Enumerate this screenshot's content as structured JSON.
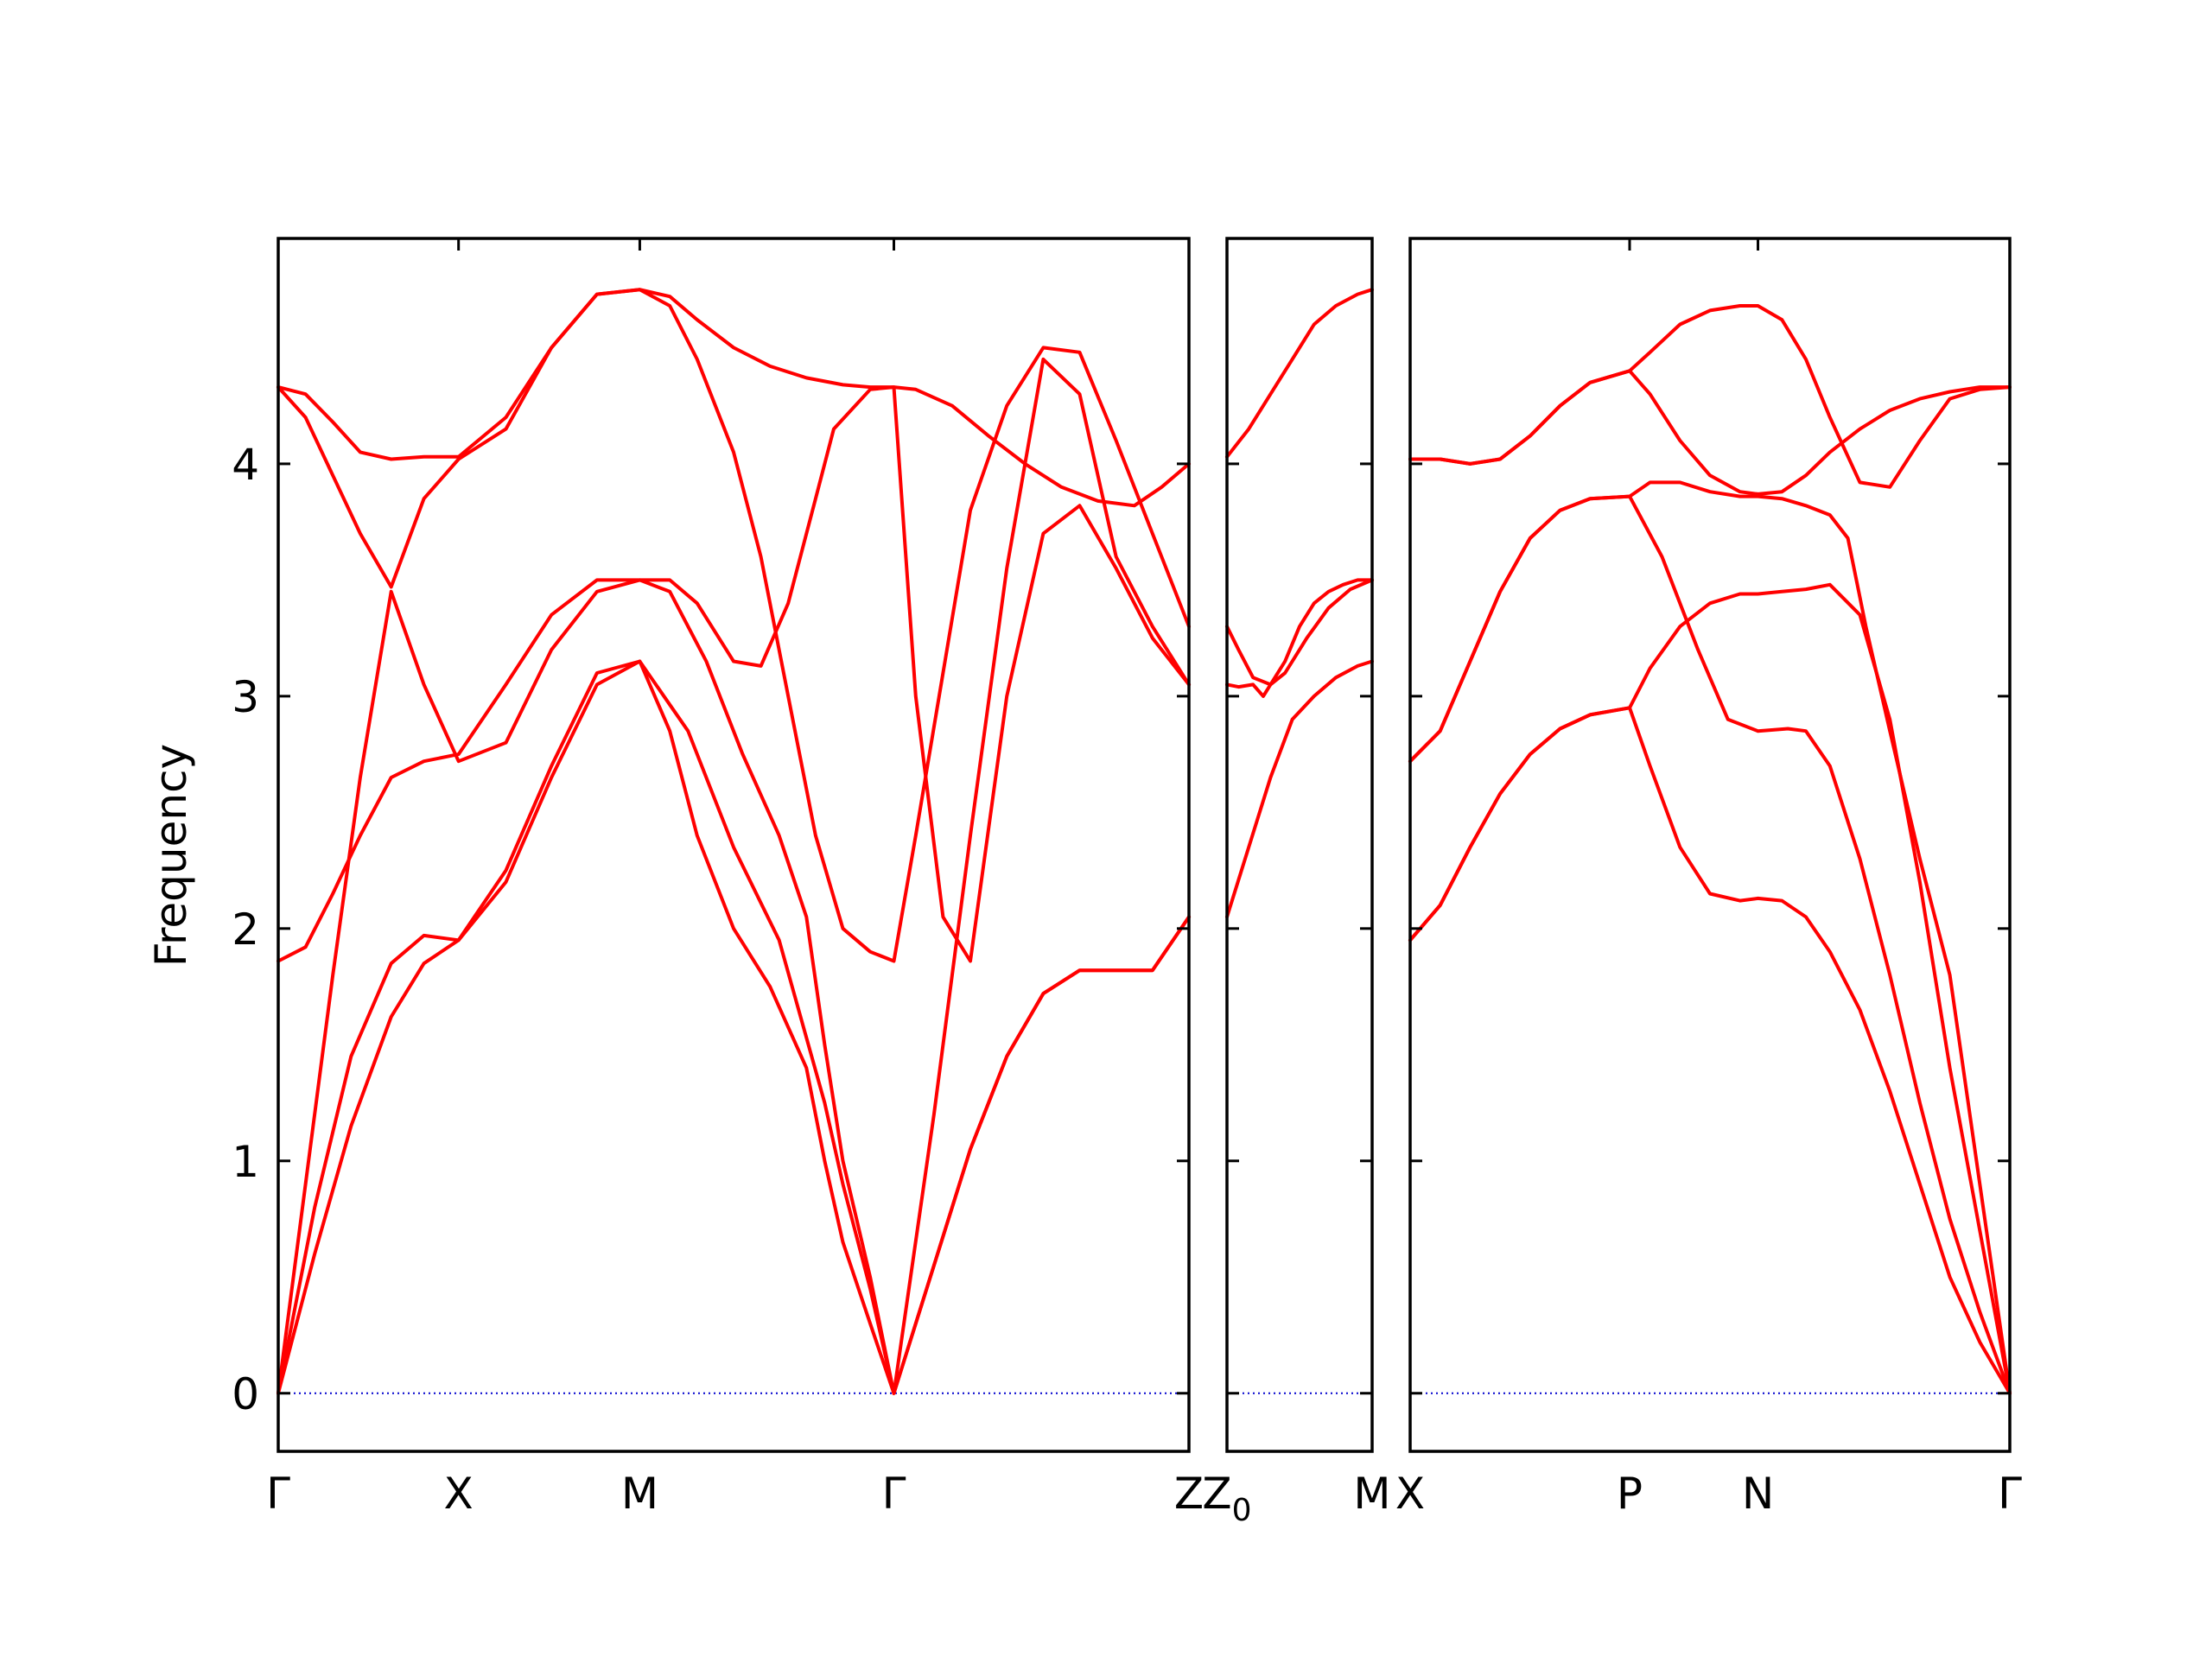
{
  "chart_data": {
    "type": "line",
    "ylabel": "Frequency",
    "ylim": [
      -0.25,
      4.97
    ],
    "yticks": [
      0,
      1,
      2,
      3,
      4
    ],
    "ytick_labels": [
      "0",
      "1",
      "2",
      "3",
      "4"
    ],
    "series_color": "#ff0000",
    "zero_line_color": "#0000cd",
    "panels": [
      {
        "name": "panel-1",
        "xlim": [
          0,
          1
        ],
        "tick_positions": [
          0,
          0.198,
          0.397,
          0.676,
          1
        ],
        "tick_labels": [
          {
            "main": "Γ",
            "sub": ""
          },
          {
            "main": "X",
            "sub": ""
          },
          {
            "main": "M",
            "sub": ""
          },
          {
            "main": "Γ",
            "sub": ""
          },
          {
            "main": "Z",
            "sub": ""
          }
        ],
        "bands": [
          {
            "x": [
              0,
              0.04,
              0.08,
              0.124,
              0.16,
              0.198,
              0.25,
              0.3,
              0.35,
              0.397,
              0.45,
              0.5,
              0.55,
              0.6,
              0.62,
              0.65,
              0.676,
              0.72,
              0.76,
              0.8,
              0.84,
              0.88,
              0.92,
              0.96,
              1
            ],
            "y": [
              0,
              0.6,
              1.15,
              1.62,
              1.85,
              1.95,
              2.25,
              2.7,
              3.1,
              3.15,
              2.85,
              2.35,
              1.95,
              1.25,
              0.9,
              0.45,
              0,
              0.55,
              1.05,
              1.45,
              1.72,
              1.82,
              1.82,
              1.82,
              2.05
            ]
          },
          {
            "x": [
              0,
              0.04,
              0.08,
              0.124,
              0.16,
              0.198,
              0.25,
              0.3,
              0.35,
              0.397,
              0.43,
              0.46,
              0.5,
              0.54,
              0.58,
              0.6,
              0.62,
              0.65,
              0.676,
              0.72,
              0.76,
              0.8,
              0.84,
              0.88,
              0.92,
              0.96,
              1
            ],
            "y": [
              0,
              0.8,
              1.45,
              1.85,
              1.97,
              1.95,
              2.2,
              2.65,
              3.05,
              3.15,
              2.85,
              2.4,
              2.0,
              1.75,
              1.4,
              1.0,
              0.65,
              0.3,
              0,
              0.55,
              1.05,
              1.45,
              1.72,
              1.82,
              1.82,
              1.82,
              2.05
            ]
          },
          {
            "x": [
              0,
              0.03,
              0.06,
              0.09,
              0.124,
              0.16,
              0.198,
              0.25,
              0.3,
              0.35,
              0.397,
              0.43,
              0.47,
              0.51,
              0.55,
              0.58,
              0.6,
              0.62,
              0.65,
              0.676,
              0.72,
              0.76,
              0.8,
              0.84,
              0.88,
              0.92,
              0.96,
              1
            ],
            "y": [
              0,
              0.9,
              1.8,
              2.65,
              3.45,
              3.05,
              2.72,
              2.8,
              3.2,
              3.45,
              3.5,
              3.45,
              3.15,
              2.75,
              2.4,
              2.05,
              1.5,
              1.0,
              0.5,
              0,
              1.2,
              2.4,
              3.55,
              4.45,
              4.3,
              3.6,
              3.3,
              3.05
            ]
          },
          {
            "x": [
              0,
              0.03,
              0.06,
              0.09,
              0.124,
              0.16,
              0.198,
              0.25,
              0.3,
              0.35,
              0.397,
              0.43,
              0.46,
              0.5,
              0.53,
              0.56,
              0.59,
              0.61,
              0.65,
              0.676,
              0.7,
              0.73,
              0.76,
              0.8,
              0.84,
              0.88,
              0.92,
              0.96,
              1
            ],
            "y": [
              1.86,
              1.92,
              2.15,
              2.4,
              2.65,
              2.72,
              2.75,
              3.05,
              3.35,
              3.5,
              3.5,
              3.5,
              3.4,
              3.15,
              3.13,
              3.4,
              3.85,
              4.15,
              4.32,
              4.33,
              3.0,
              2.05,
              1.86,
              3.0,
              3.7,
              3.82,
              3.55,
              3.25,
              3.05
            ]
          },
          {
            "x": [
              0,
              0.03,
              0.06,
              0.09,
              0.124,
              0.16,
              0.198,
              0.25,
              0.3,
              0.35,
              0.397,
              0.43,
              0.46,
              0.5,
              0.53,
              0.56,
              0.59,
              0.62,
              0.65,
              0.676,
              0.7,
              0.73,
              0.76,
              0.8,
              0.84,
              0.88,
              0.92,
              0.96,
              1
            ],
            "y": [
              4.33,
              4.2,
              3.95,
              3.7,
              3.47,
              3.85,
              4.02,
              4.15,
              4.5,
              4.73,
              4.75,
              4.68,
              4.45,
              4.05,
              3.6,
              3.0,
              2.4,
              2.0,
              1.9,
              1.86,
              2.4,
              3.1,
              3.8,
              4.25,
              4.5,
              4.48,
              4.1,
              3.7,
              3.3
            ]
          },
          {
            "x": [
              0,
              0.03,
              0.06,
              0.09,
              0.124,
              0.16,
              0.198,
              0.25,
              0.3,
              0.35,
              0.397,
              0.43,
              0.46,
              0.5,
              0.54,
              0.58,
              0.62,
              0.65,
              0.676,
              0.7,
              0.74,
              0.78,
              0.82,
              0.86,
              0.9,
              0.94,
              0.97,
              1
            ],
            "y": [
              4.33,
              4.3,
              4.18,
              4.05,
              4.02,
              4.03,
              4.03,
              4.2,
              4.5,
              4.73,
              4.75,
              4.72,
              4.62,
              4.5,
              4.42,
              4.37,
              4.34,
              4.33,
              4.33,
              4.32,
              4.25,
              4.12,
              4.0,
              3.9,
              3.84,
              3.82,
              3.9,
              4.0
            ]
          }
        ]
      },
      {
        "name": "panel-2",
        "xlim": [
          0,
          1
        ],
        "tick_positions": [
          0,
          1
        ],
        "tick_labels": [
          {
            "main": "Z",
            "sub": "0"
          },
          {
            "main": "M",
            "sub": ""
          }
        ],
        "bands": [
          {
            "x": [
              0,
              0.15,
              0.3,
              0.45,
              0.6,
              0.75,
              0.9,
              1
            ],
            "y": [
              2.05,
              2.35,
              2.65,
              2.9,
              3.0,
              3.08,
              3.13,
              3.15
            ]
          },
          {
            "x": [
              0,
              0.08,
              0.18,
              0.25,
              0.3,
              0.4,
              0.55,
              0.7,
              0.85,
              1
            ],
            "y": [
              3.05,
              3.04,
              3.05,
              3.0,
              3.05,
              3.1,
              3.25,
              3.38,
              3.46,
              3.5
            ]
          },
          {
            "x": [
              0,
              0.08,
              0.18,
              0.3,
              0.4,
              0.5,
              0.6,
              0.7,
              0.8,
              0.9,
              1
            ],
            "y": [
              3.3,
              3.2,
              3.08,
              3.05,
              3.15,
              3.3,
              3.4,
              3.45,
              3.48,
              3.5,
              3.5
            ]
          },
          {
            "x": [
              0,
              0.15,
              0.3,
              0.45,
              0.6,
              0.75,
              0.9,
              1
            ],
            "y": [
              4.03,
              4.15,
              4.3,
              4.45,
              4.6,
              4.68,
              4.73,
              4.75
            ]
          }
        ]
      },
      {
        "name": "panel-3",
        "xlim": [
          0,
          1
        ],
        "tick_positions": [
          0,
          0.366,
          0.58,
          1
        ],
        "tick_labels": [
          {
            "main": "X",
            "sub": ""
          },
          {
            "main": "P",
            "sub": ""
          },
          {
            "main": "N",
            "sub": ""
          },
          {
            "main": "Γ",
            "sub": ""
          }
        ],
        "bands": [
          {
            "x": [
              0,
              0.05,
              0.1,
              0.15,
              0.2,
              0.25,
              0.3,
              0.366,
              0.4,
              0.45,
              0.5,
              0.55,
              0.58,
              0.62,
              0.66,
              0.7,
              0.75,
              0.8,
              0.85,
              0.9,
              0.95,
              1
            ],
            "y": [
              1.95,
              2.1,
              2.35,
              2.58,
              2.75,
              2.86,
              2.92,
              2.95,
              2.7,
              2.35,
              2.15,
              2.12,
              2.13,
              2.12,
              2.05,
              1.9,
              1.65,
              1.3,
              0.9,
              0.5,
              0.22,
              0
            ]
          },
          {
            "x": [
              0,
              0.05,
              0.1,
              0.15,
              0.2,
              0.25,
              0.3,
              0.366,
              0.42,
              0.48,
              0.53,
              0.58,
              0.63,
              0.66,
              0.7,
              0.75,
              0.8,
              0.85,
              0.9,
              0.95,
              1
            ],
            "y": [
              2.72,
              2.85,
              3.15,
              3.45,
              3.68,
              3.8,
              3.85,
              3.86,
              3.6,
              3.2,
              2.9,
              2.85,
              2.86,
              2.85,
              2.7,
              2.3,
              1.8,
              1.25,
              0.75,
              0.35,
              0
            ]
          },
          {
            "x": [
              0,
              0.05,
              0.1,
              0.15,
              0.2,
              0.25,
              0.3,
              0.366,
              0.4,
              0.45,
              0.5,
              0.55,
              0.58,
              0.62,
              0.66,
              0.7,
              0.75,
              0.8,
              0.85,
              0.9,
              0.95,
              1
            ],
            "y": [
              1.95,
              2.1,
              2.35,
              2.58,
              2.75,
              2.86,
              2.92,
              2.95,
              3.12,
              3.3,
              3.4,
              3.44,
              3.44,
              3.45,
              3.46,
              3.48,
              3.35,
              2.9,
              2.2,
              1.4,
              0.7,
              0
            ]
          },
          {
            "x": [
              0,
              0.05,
              0.1,
              0.15,
              0.2,
              0.25,
              0.3,
              0.366,
              0.4,
              0.45,
              0.5,
              0.55,
              0.58,
              0.62,
              0.66,
              0.7,
              0.73,
              0.76,
              0.8,
              0.85,
              0.9,
              0.95,
              1
            ],
            "y": [
              2.72,
              2.85,
              3.15,
              3.45,
              3.68,
              3.8,
              3.85,
              3.86,
              3.92,
              3.92,
              3.88,
              3.86,
              3.86,
              3.85,
              3.82,
              3.78,
              3.68,
              3.3,
              2.85,
              2.3,
              1.8,
              0.9,
              0
            ]
          },
          {
            "x": [
              0,
              0.05,
              0.1,
              0.15,
              0.2,
              0.25,
              0.3,
              0.366,
              0.4,
              0.45,
              0.5,
              0.55,
              0.58,
              0.62,
              0.66,
              0.7,
              0.75,
              0.8,
              0.85,
              0.9,
              0.95,
              1
            ],
            "y": [
              4.02,
              4.02,
              4.0,
              4.02,
              4.12,
              4.25,
              4.35,
              4.4,
              4.3,
              4.1,
              3.95,
              3.88,
              3.87,
              3.88,
              3.95,
              4.05,
              4.15,
              4.23,
              4.28,
              4.31,
              4.33,
              4.33
            ]
          },
          {
            "x": [
              0,
              0.05,
              0.1,
              0.15,
              0.2,
              0.25,
              0.3,
              0.366,
              0.4,
              0.45,
              0.5,
              0.55,
              0.58,
              0.62,
              0.66,
              0.7,
              0.75,
              0.8,
              0.85,
              0.9,
              0.95,
              1
            ],
            "y": [
              4.02,
              4.02,
              4.0,
              4.02,
              4.12,
              4.25,
              4.35,
              4.4,
              4.48,
              4.6,
              4.66,
              4.68,
              4.68,
              4.62,
              4.45,
              4.2,
              3.92,
              3.9,
              4.1,
              4.28,
              4.32,
              4.33
            ]
          }
        ]
      }
    ]
  }
}
